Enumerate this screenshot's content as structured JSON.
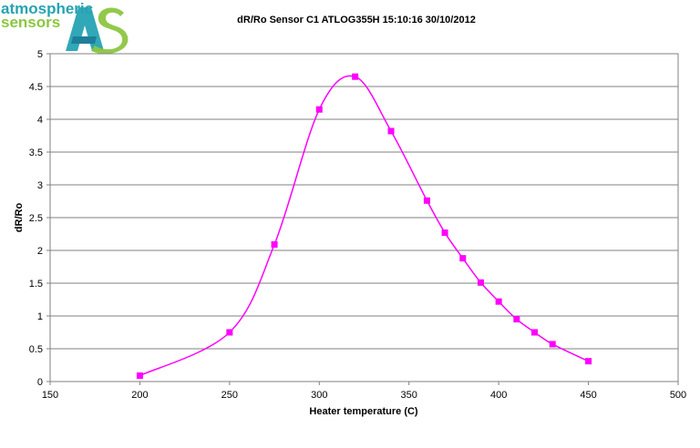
{
  "logo": {
    "line1": "atmospheric",
    "line2": "sensors",
    "mark_colors": [
      "#26a3b3",
      "#8cc640",
      "#1e7f9a"
    ]
  },
  "chart_data": {
    "type": "line",
    "title": "dR/Ro Sensor C1 ATLOG355H 15:10:16 30/10/2012",
    "xlabel": "Heater temperature (C)",
    "ylabel": "dR/Ro",
    "xlim": [
      150,
      500
    ],
    "ylim": [
      0,
      5
    ],
    "xticks": [
      150,
      200,
      250,
      300,
      350,
      400,
      450,
      500
    ],
    "yticks": [
      0,
      0.5,
      1,
      1.5,
      2,
      2.5,
      3,
      3.5,
      4,
      4.5,
      5
    ],
    "xtick_labels": [
      "150",
      "200",
      "250",
      "300",
      "350",
      "400",
      "450",
      "500"
    ],
    "ytick_labels": [
      "0",
      "0.5",
      "1",
      "1.5",
      "2",
      "2.5",
      "3",
      "3.5",
      "4",
      "4.5",
      "5"
    ],
    "grid": "horizontal",
    "legend": "none",
    "smooth": true,
    "series": [
      {
        "color": "#ff00ff",
        "marker": "square",
        "x": [
          200,
          250,
          275,
          300,
          320,
          340,
          360,
          370,
          380,
          390,
          400,
          410,
          420,
          430,
          450
        ],
        "y": [
          0.09,
          0.75,
          2.09,
          4.15,
          4.65,
          3.82,
          2.76,
          2.27,
          1.88,
          1.51,
          1.22,
          0.95,
          0.75,
          0.57,
          0.31
        ]
      }
    ]
  }
}
